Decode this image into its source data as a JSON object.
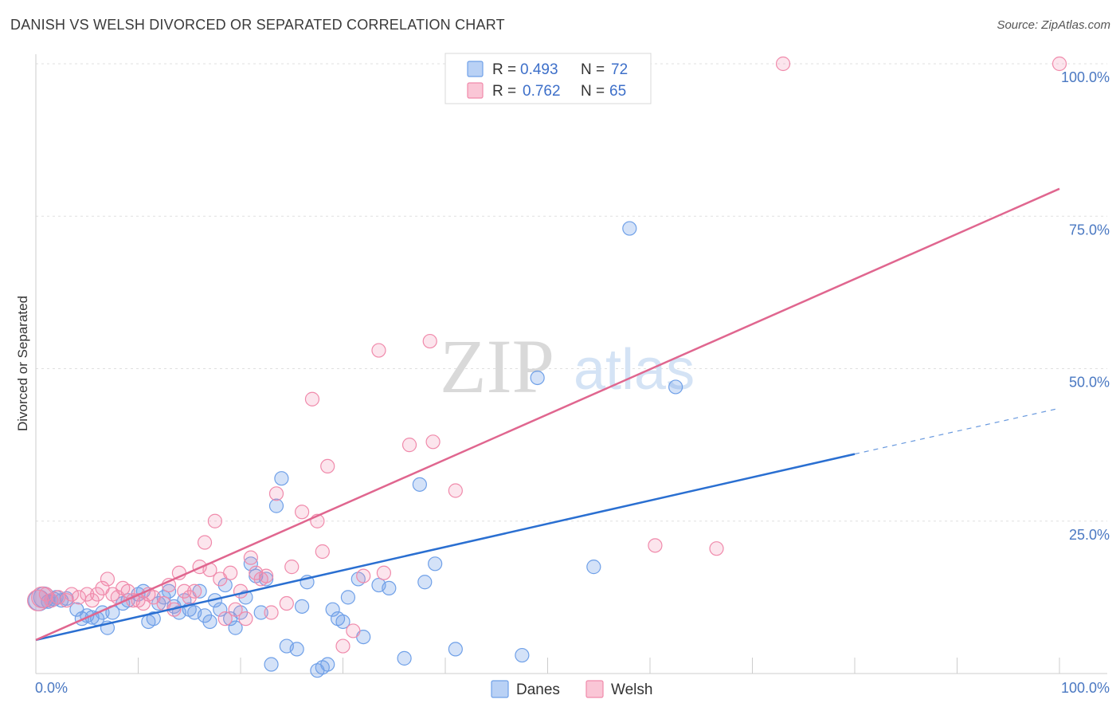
{
  "title": "DANISH VS WELSH DIVORCED OR SEPARATED CORRELATION CHART",
  "source": "Source: ZipAtlas.com",
  "chart_data": {
    "type": "scatter",
    "xlabel": "",
    "ylabel": "Divorced or Separated",
    "xlim": [
      0,
      100
    ],
    "ylim": [
      0,
      100
    ],
    "x_tick_labels": [
      "0.0%",
      "100.0%"
    ],
    "y_ticks": [
      25,
      50,
      75,
      100
    ],
    "y_tick_labels": [
      "25.0%",
      "50.0%",
      "75.0%",
      "100.0%"
    ],
    "grid": true,
    "colors": {
      "Danes": "#6fa0e8",
      "Welsh": "#f08aab",
      "Danes_line": "#2a6fd1",
      "Welsh_line": "#e0668f"
    },
    "legend": [
      {
        "series": "Danes",
        "r_label": "R =",
        "r_value": "0.493",
        "n_label": "N =",
        "n_value": "72"
      },
      {
        "series": "Welsh",
        "r_label": "R =",
        "r_value": "0.762",
        "n_label": "N =",
        "n_value": "65"
      }
    ],
    "series": [
      {
        "name": "Danes",
        "trend": {
          "x0": 0,
          "y0": 5.5,
          "x1": 80,
          "y1": 36,
          "dash_to_x": 100,
          "dash_to_y": 43.5
        },
        "points": [
          [
            0.3,
            12.0
          ],
          [
            0.8,
            12.5
          ],
          [
            1.2,
            11.8
          ],
          [
            1.8,
            12.2
          ],
          [
            2.5,
            12.0
          ],
          [
            3.0,
            12.3
          ],
          [
            4.0,
            10.5
          ],
          [
            4.5,
            9.0
          ],
          [
            5.0,
            9.5
          ],
          [
            5.5,
            9.2
          ],
          [
            6.0,
            9.0
          ],
          [
            7.0,
            7.5
          ],
          [
            7.5,
            10.0
          ],
          [
            8.5,
            11.5
          ],
          [
            9.0,
            12.0
          ],
          [
            10.0,
            13.0
          ],
          [
            10.5,
            13.5
          ],
          [
            11.0,
            8.5
          ],
          [
            11.5,
            9.0
          ],
          [
            12.0,
            11.5
          ],
          [
            12.5,
            12.5
          ],
          [
            13.0,
            13.5
          ],
          [
            13.5,
            11.0
          ],
          [
            14.0,
            10.0
          ],
          [
            14.5,
            12.0
          ],
          [
            15.0,
            10.5
          ],
          [
            15.5,
            10.0
          ],
          [
            16.0,
            13.5
          ],
          [
            16.5,
            9.5
          ],
          [
            17.0,
            8.5
          ],
          [
            17.5,
            12.0
          ],
          [
            18.0,
            10.5
          ],
          [
            18.5,
            14.5
          ],
          [
            19.0,
            9.0
          ],
          [
            19.5,
            7.5
          ],
          [
            20.0,
            10.0
          ],
          [
            20.5,
            12.5
          ],
          [
            21.0,
            18.0
          ],
          [
            21.5,
            16.0
          ],
          [
            22.0,
            10.0
          ],
          [
            22.5,
            15.5
          ],
          [
            23.0,
            1.5
          ],
          [
            23.5,
            27.5
          ],
          [
            24.0,
            32.0
          ],
          [
            24.5,
            4.5
          ],
          [
            25.5,
            4.0
          ],
          [
            26.0,
            11.0
          ],
          [
            26.5,
            15.0
          ],
          [
            27.5,
            0.5
          ],
          [
            28.0,
            1.0
          ],
          [
            28.5,
            1.5
          ],
          [
            29.0,
            10.5
          ],
          [
            29.5,
            9.0
          ],
          [
            30.0,
            8.5
          ],
          [
            30.5,
            12.5
          ],
          [
            31.5,
            15.5
          ],
          [
            32.0,
            6.0
          ],
          [
            33.5,
            14.5
          ],
          [
            34.5,
            14.0
          ],
          [
            36.0,
            2.5
          ],
          [
            37.5,
            31.0
          ],
          [
            38.0,
            15.0
          ],
          [
            39.0,
            18.0
          ],
          [
            41.0,
            4.0
          ],
          [
            47.5,
            3.0
          ],
          [
            49.0,
            48.5
          ],
          [
            54.5,
            17.5
          ],
          [
            58.0,
            73.0
          ],
          [
            62.5,
            47.0
          ],
          [
            1.5,
            12.0
          ],
          [
            2.0,
            12.5
          ],
          [
            6.5,
            10.0
          ]
        ]
      },
      {
        "name": "Welsh",
        "trend": {
          "x0": 0,
          "y0": 5.5,
          "x1": 100,
          "y1": 79.5
        },
        "points": [
          [
            0.2,
            12.0
          ],
          [
            0.6,
            12.5
          ],
          [
            1.0,
            13.0
          ],
          [
            1.5,
            12.0
          ],
          [
            2.2,
            12.5
          ],
          [
            3.0,
            12.0
          ],
          [
            3.5,
            13.0
          ],
          [
            4.2,
            12.5
          ],
          [
            5.0,
            13.0
          ],
          [
            5.5,
            12.0
          ],
          [
            6.0,
            13.0
          ],
          [
            6.5,
            14.0
          ],
          [
            7.0,
            15.5
          ],
          [
            7.5,
            13.0
          ],
          [
            8.0,
            12.5
          ],
          [
            8.5,
            14.0
          ],
          [
            9.0,
            13.5
          ],
          [
            9.5,
            12.0
          ],
          [
            10.0,
            12.0
          ],
          [
            10.5,
            11.5
          ],
          [
            11.0,
            13.0
          ],
          [
            11.5,
            12.5
          ],
          [
            12.5,
            11.5
          ],
          [
            13.0,
            14.5
          ],
          [
            13.5,
            10.5
          ],
          [
            14.0,
            16.5
          ],
          [
            14.5,
            13.5
          ],
          [
            15.0,
            12.5
          ],
          [
            15.5,
            13.5
          ],
          [
            16.0,
            17.5
          ],
          [
            16.5,
            21.5
          ],
          [
            17.0,
            17.0
          ],
          [
            17.5,
            25.0
          ],
          [
            18.0,
            15.5
          ],
          [
            18.5,
            9.0
          ],
          [
            19.0,
            16.5
          ],
          [
            19.5,
            10.5
          ],
          [
            20.0,
            13.5
          ],
          [
            20.5,
            9.0
          ],
          [
            21.0,
            19.0
          ],
          [
            21.5,
            16.5
          ],
          [
            22.0,
            15.5
          ],
          [
            22.5,
            16.0
          ],
          [
            23.0,
            10.0
          ],
          [
            23.5,
            29.5
          ],
          [
            24.5,
            11.5
          ],
          [
            25.0,
            17.5
          ],
          [
            26.0,
            26.5
          ],
          [
            27.0,
            45.0
          ],
          [
            27.5,
            25.0
          ],
          [
            28.0,
            20.0
          ],
          [
            28.5,
            34.0
          ],
          [
            30.0,
            4.5
          ],
          [
            31.0,
            7.0
          ],
          [
            32.0,
            16.0
          ],
          [
            33.5,
            53.0
          ],
          [
            34.0,
            16.5
          ],
          [
            36.5,
            37.5
          ],
          [
            38.5,
            54.5
          ],
          [
            38.8,
            38.0
          ],
          [
            41.0,
            30.0
          ],
          [
            60.5,
            21.0
          ],
          [
            66.5,
            20.5
          ],
          [
            73.0,
            100.0
          ],
          [
            100.0,
            100.0
          ]
        ]
      }
    ]
  },
  "watermark": {
    "zip": "ZIP",
    "atlas": "atlas"
  }
}
